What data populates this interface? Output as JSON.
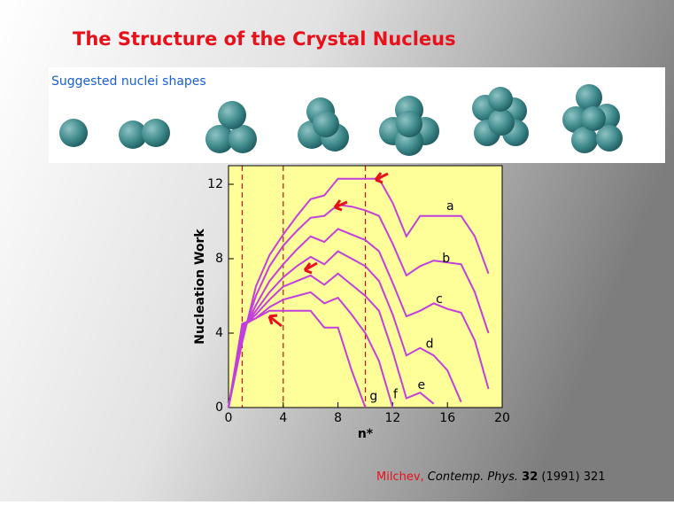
{
  "title": "The Structure of the Crystal Nucleus",
  "shapes_caption": "Suggested nuclei shapes",
  "citation": {
    "author": "Milchev,",
    "journal": "Contemp. Phys.",
    "volume": "32",
    "details": "(1991) 321"
  },
  "chart_data": {
    "type": "line",
    "x_label": "n*",
    "y_label": "Nucleation Work",
    "x": [
      0,
      1,
      2,
      3,
      4,
      5,
      6,
      7,
      8,
      9,
      10,
      11,
      12,
      13,
      14,
      15,
      16,
      17,
      18,
      19
    ],
    "series": [
      {
        "name": "a",
        "color": "#c23fdc",
        "values": [
          0,
          3.5,
          6.5,
          8.2,
          9.3,
          10.3,
          11.2,
          11.4,
          12.3,
          12.3,
          12.3,
          12.3,
          11.0,
          9.2,
          10.3,
          10.3,
          10.3,
          10.3,
          9.2,
          7.2
        ]
      },
      {
        "name": "b",
        "color": "#c23fdc",
        "values": [
          0,
          3.8,
          6.0,
          7.6,
          8.7,
          9.5,
          10.2,
          10.3,
          10.9,
          10.8,
          10.6,
          10.3,
          8.8,
          7.1,
          7.6,
          7.9,
          7.8,
          7.7,
          6.2,
          4.0
        ]
      },
      {
        "name": "c",
        "color": "#c23fdc",
        "values": [
          0,
          4.0,
          5.5,
          6.8,
          7.7,
          8.5,
          9.2,
          8.9,
          9.6,
          9.3,
          9.0,
          8.4,
          6.7,
          4.9,
          5.2,
          5.6,
          5.3,
          5.1,
          3.6,
          1.0
        ]
      },
      {
        "name": "d",
        "color": "#c23fdc",
        "values": [
          0,
          4.2,
          5.2,
          6.2,
          7.0,
          7.6,
          8.1,
          7.7,
          8.4,
          8.0,
          7.6,
          6.8,
          5.0,
          2.8,
          3.2,
          2.8,
          2.0,
          0.3,
          null,
          null
        ]
      },
      {
        "name": "e",
        "color": "#c23fdc",
        "values": [
          0,
          4.3,
          5.0,
          5.8,
          6.5,
          6.8,
          7.1,
          6.6,
          7.2,
          6.6,
          6.0,
          5.2,
          3.0,
          0.5,
          0.8,
          0.2,
          null,
          null,
          null,
          null
        ]
      },
      {
        "name": "f",
        "color": "#c23fdc",
        "values": [
          0,
          4.4,
          4.8,
          5.4,
          5.8,
          6.0,
          6.2,
          5.6,
          5.9,
          5.0,
          4.0,
          2.5,
          0,
          null,
          null,
          null,
          null,
          null,
          null,
          null
        ]
      },
      {
        "name": "g",
        "color": "#c23fdc",
        "values": [
          0,
          4.5,
          4.8,
          5.2,
          5.2,
          5.2,
          5.2,
          4.3,
          4.3,
          2.0,
          0,
          null,
          null,
          null,
          null,
          null,
          null,
          null,
          null,
          null
        ]
      }
    ],
    "reference_lines": [
      1,
      4,
      10
    ],
    "xlim": [
      0,
      20
    ],
    "ylim": [
      0,
      13
    ],
    "xticks": [
      0,
      4,
      8,
      12,
      16,
      20
    ],
    "yticks": [
      0,
      4,
      8,
      12
    ],
    "background": "#ffff99"
  }
}
